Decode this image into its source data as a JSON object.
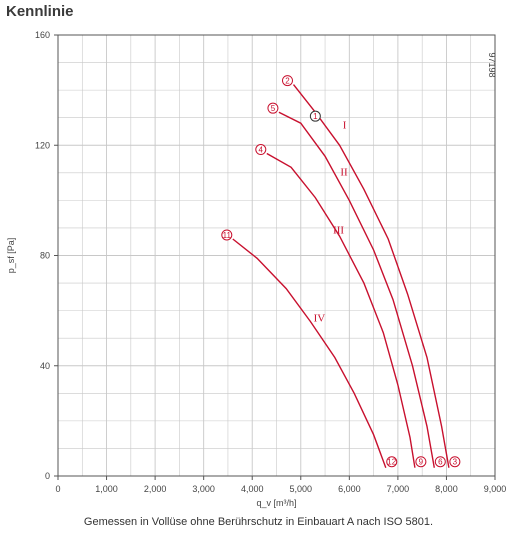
{
  "page": {
    "title": "Kennlinie",
    "caption": "Gemessen in Vollüse ohne Berührschutz in Einbauart A nach ISO 5801.",
    "code": "97198"
  },
  "colors": {
    "curve": "#c8102e",
    "grid": "#c8c8c8",
    "axis": "#555555"
  },
  "chart_data": {
    "type": "line",
    "title": "Kennlinie",
    "xlabel": "q_v [m³/h]",
    "ylabel": "p_sf [Pa]",
    "xlim": [
      0,
      9000
    ],
    "ylim": [
      0,
      160
    ],
    "x_ticks": [
      "0",
      "1,000",
      "2,000",
      "3,000",
      "4,000",
      "5,000",
      "6,000",
      "7,000",
      "8,000",
      "9,000"
    ],
    "y_ticks": [
      "0",
      "40",
      "80",
      "120",
      "160"
    ],
    "grid": true,
    "series": [
      {
        "name": "I",
        "points": [
          [
            4850,
            142
          ],
          [
            5300,
            132
          ],
          [
            5800,
            120
          ],
          [
            6300,
            104
          ],
          [
            6800,
            86
          ],
          [
            7200,
            66
          ],
          [
            7600,
            43
          ],
          [
            7900,
            18
          ],
          [
            8050,
            3
          ]
        ],
        "start_marker": "2",
        "end_marker": "3",
        "extra_marker": "1"
      },
      {
        "name": "II",
        "points": [
          [
            4550,
            132
          ],
          [
            5000,
            128
          ],
          [
            5500,
            116
          ],
          [
            6000,
            100
          ],
          [
            6500,
            82
          ],
          [
            6900,
            64
          ],
          [
            7300,
            40
          ],
          [
            7600,
            18
          ],
          [
            7750,
            3
          ]
        ],
        "start_marker": "5",
        "end_marker": "6"
      },
      {
        "name": "III",
        "points": [
          [
            4300,
            117
          ],
          [
            4800,
            112
          ],
          [
            5300,
            101
          ],
          [
            5800,
            87
          ],
          [
            6300,
            70
          ],
          [
            6700,
            52
          ],
          [
            7000,
            33
          ],
          [
            7250,
            14
          ],
          [
            7350,
            3
          ]
        ],
        "start_marker": "4",
        "end_marker": "9"
      },
      {
        "name": "IV",
        "points": [
          [
            3600,
            86
          ],
          [
            4100,
            79
          ],
          [
            4700,
            68
          ],
          [
            5200,
            56
          ],
          [
            5700,
            43
          ],
          [
            6100,
            30
          ],
          [
            6500,
            15
          ],
          [
            6750,
            3
          ]
        ],
        "start_marker": "11",
        "end_marker": "12"
      }
    ]
  }
}
